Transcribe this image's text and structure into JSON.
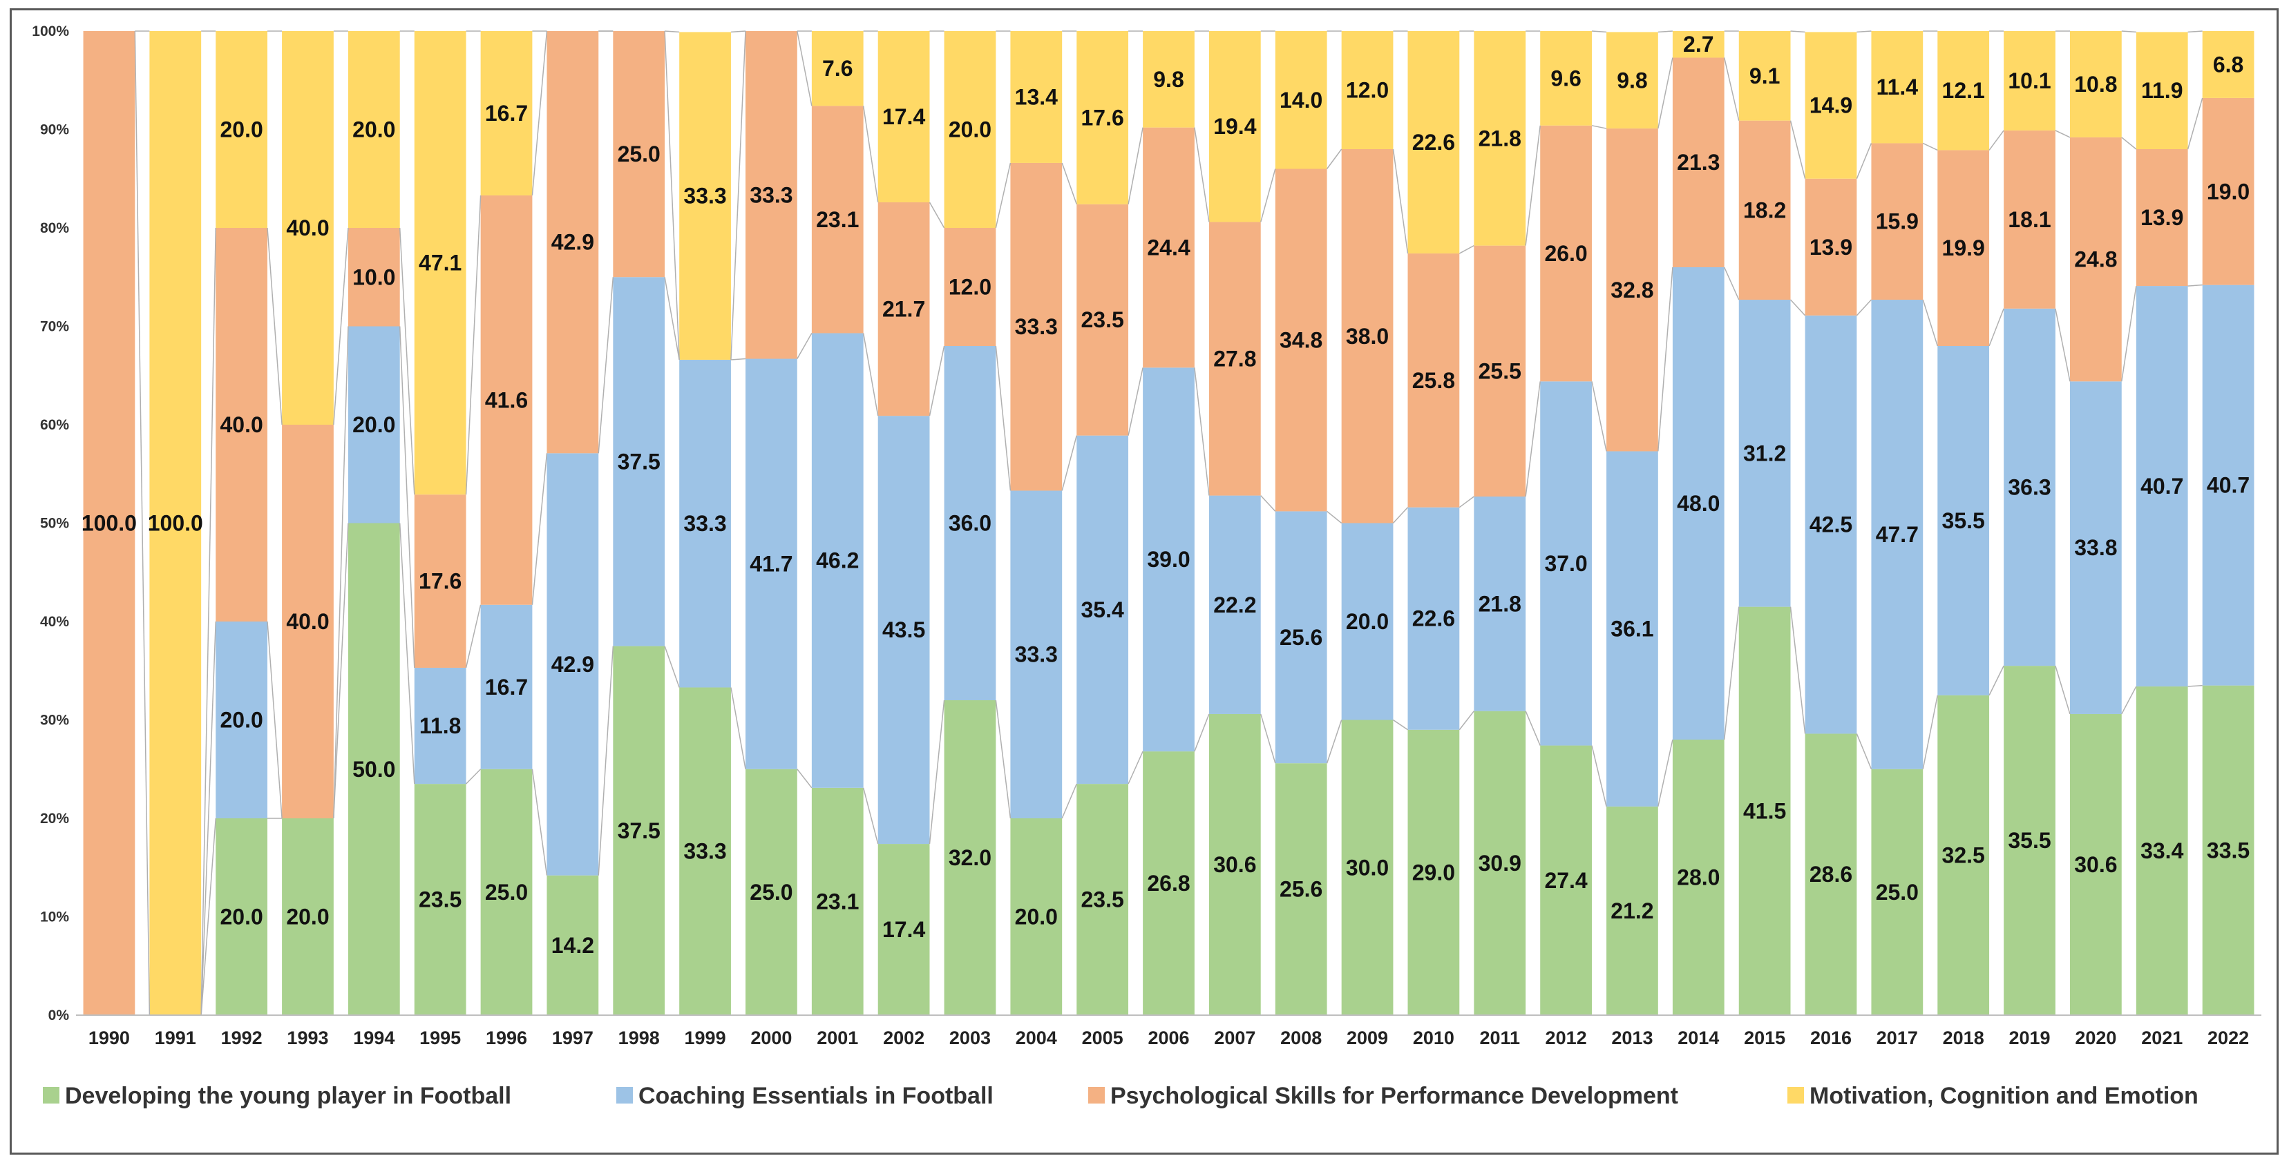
{
  "chart_data": {
    "type": "bar",
    "stacked": true,
    "normalized": true,
    "categories": [
      "1990",
      "1991",
      "1992",
      "1993",
      "1994",
      "1995",
      "1996",
      "1997",
      "1998",
      "1999",
      "2000",
      "2001",
      "2002",
      "2003",
      "2004",
      "2005",
      "2006",
      "2007",
      "2008",
      "2009",
      "2010",
      "2011",
      "2012",
      "2013",
      "2014",
      "2015",
      "2016",
      "2017",
      "2018",
      "2019",
      "2020",
      "2021",
      "2022"
    ],
    "series": [
      {
        "name": "Developing the young player in Football",
        "color": "#a9d18e",
        "values": [
          0,
          0,
          20.0,
          20.0,
          50.0,
          23.5,
          25.0,
          14.2,
          37.5,
          33.3,
          25.0,
          23.1,
          17.4,
          32.0,
          20.0,
          23.5,
          26.8,
          30.6,
          25.6,
          30.0,
          29.0,
          30.9,
          27.4,
          21.2,
          28.0,
          41.5,
          28.6,
          25.0,
          32.5,
          35.5,
          30.6,
          33.4,
          33.5
        ],
        "labels": [
          "",
          "",
          "20.0",
          "20.0",
          "50.0",
          "23.5",
          "25.0",
          "14.2",
          "37.5",
          "33.3",
          "25.0",
          "23.1",
          "17.4",
          "32.0",
          "20.0",
          "23.5",
          "26.8",
          "30.6",
          "25.6",
          "30.0",
          "29.0",
          "30.9",
          "27.4",
          "21.2",
          "28.0",
          "41.5",
          "28.6",
          "25.0",
          "32.5",
          "35.5",
          "30.6",
          "33.4",
          "33.5"
        ]
      },
      {
        "name": "Coaching Essentials in Football",
        "color": "#9dc3e6",
        "values": [
          0,
          0,
          20.0,
          0,
          20.0,
          11.8,
          16.7,
          42.9,
          37.5,
          33.3,
          41.7,
          46.2,
          43.5,
          36.0,
          33.3,
          35.4,
          39.0,
          22.2,
          25.6,
          20.0,
          22.6,
          21.8,
          37.0,
          36.1,
          48.0,
          31.2,
          42.5,
          47.7,
          35.5,
          36.3,
          33.8,
          40.7,
          40.7
        ],
        "labels": [
          "",
          "",
          "20.0",
          "",
          "20.0",
          "11.8",
          "16.7",
          "42.9",
          "37.5",
          "33.3",
          "41.7",
          "46.2",
          "43.5",
          "36.0",
          "33.3",
          "35.4",
          "39.0",
          "22.2",
          "25.6",
          "20.0",
          "22.6",
          "21.8",
          "37.0",
          "36.1",
          "48.0",
          "31.2",
          "42.5",
          "47.7",
          "35.5",
          "36.3",
          "33.8",
          "40.7",
          "40.7"
        ]
      },
      {
        "name": "Psychological Skills for Performance Development",
        "color": "#f4b183",
        "values": [
          100.0,
          0,
          40.0,
          40.0,
          10.0,
          17.6,
          41.6,
          42.9,
          25.0,
          0,
          33.3,
          23.1,
          21.7,
          12.0,
          33.3,
          23.5,
          24.4,
          27.8,
          34.8,
          38.0,
          25.8,
          25.5,
          26.0,
          32.8,
          21.3,
          18.2,
          13.9,
          15.9,
          19.9,
          18.1,
          24.8,
          13.9,
          19.0
        ],
        "labels": [
          "100.0",
          "",
          "40.0",
          "40.0",
          "10.0",
          "17.6",
          "41.6",
          "42.9",
          "25.0",
          "",
          "33.3",
          "23.1",
          "21.7",
          "12.0",
          "33.3",
          "23.5",
          "24.4",
          "27.8",
          "34.8",
          "38.0",
          "25.8",
          "25.5",
          "26.0",
          "32.8",
          "21.3",
          "18.2",
          "13.9",
          "15.9",
          "19.9",
          "18.1",
          "24.8",
          "13.9",
          "19.0"
        ]
      },
      {
        "name": "Motivation, Cognition and Emotion",
        "color": "#ffd966",
        "values": [
          0,
          100.0,
          20.0,
          40.0,
          20.0,
          47.1,
          16.7,
          0,
          0,
          33.3,
          0,
          7.6,
          17.4,
          20.0,
          13.4,
          17.6,
          9.8,
          19.4,
          14.0,
          12.0,
          22.6,
          21.8,
          9.6,
          9.8,
          2.7,
          9.1,
          14.9,
          11.4,
          12.1,
          10.1,
          10.8,
          11.9,
          6.8
        ],
        "labels": [
          "",
          "100.0",
          "20.0",
          "40.0",
          "20.0",
          "47.1",
          "16.7",
          "",
          "",
          "33.3",
          "",
          "7.6",
          "17.4",
          "20.0",
          "13.4",
          "17.6",
          "9.8",
          "19.4",
          "14.0",
          "12.0",
          "22.6",
          "21.8",
          "9.6",
          "9.8",
          "2.7",
          "9.1",
          "14.9",
          "11.4",
          "12.1",
          "10.1",
          "10.8",
          "11.9",
          "6.8"
        ]
      }
    ],
    "y_ticks": [
      "0%",
      "10%",
      "20%",
      "30%",
      "40%",
      "50%",
      "60%",
      "70%",
      "80%",
      "90%",
      "100%"
    ],
    "ylim": [
      0,
      100
    ],
    "grid": false,
    "series_lines": true,
    "legend_position": "bottom"
  }
}
